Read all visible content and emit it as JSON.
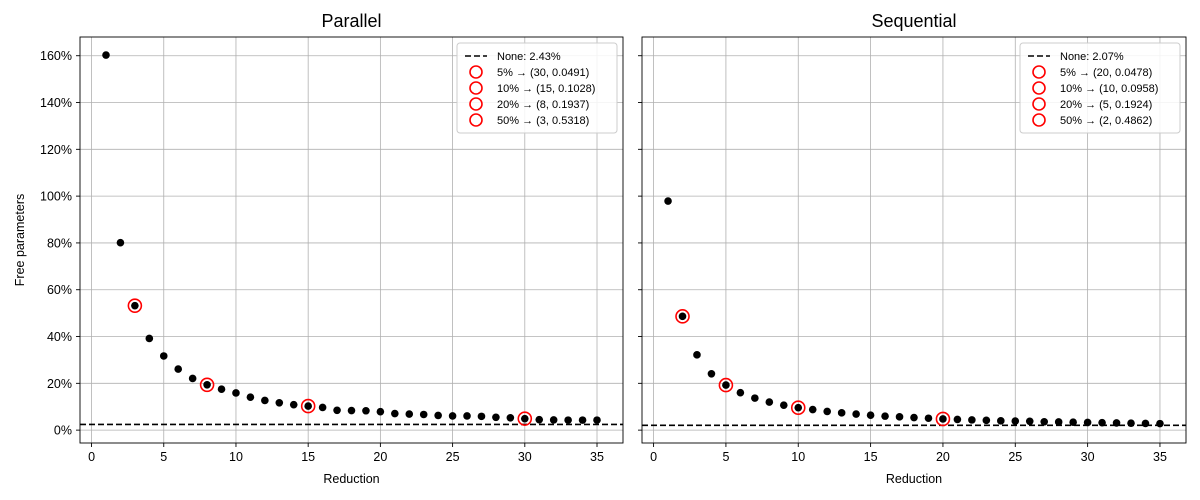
{
  "chart_data": [
    {
      "type": "scatter",
      "title": "Parallel",
      "xlabel": "Reduction",
      "ylabel": "Free parameters",
      "xlim": [
        -0.8,
        36.8
      ],
      "ylim": [
        -0.055,
        1.68
      ],
      "xticks": [
        0,
        5,
        10,
        15,
        20,
        25,
        30,
        35
      ],
      "xtick_labels": [
        "0",
        "5",
        "10",
        "15",
        "20",
        "25",
        "30",
        "35"
      ],
      "yticks": [
        0,
        0.2,
        0.4,
        0.6,
        0.8,
        1.0,
        1.2,
        1.4,
        1.6
      ],
      "ytick_labels": [
        "0%",
        "20%",
        "40%",
        "60%",
        "80%",
        "100%",
        "120%",
        "140%",
        "160%"
      ],
      "grid": true,
      "legend_position": "top-right",
      "points": {
        "x": [
          1,
          2,
          3,
          4,
          5,
          6,
          7,
          8,
          9,
          10,
          11,
          12,
          13,
          14,
          15,
          16,
          17,
          18,
          19,
          20,
          21,
          22,
          23,
          24,
          25,
          26,
          27,
          28,
          29,
          30,
          31,
          32,
          33,
          34,
          35
        ],
        "y": [
          1.603,
          0.801,
          0.5318,
          0.3918,
          0.3168,
          0.2608,
          0.2208,
          0.1937,
          0.1748,
          0.1588,
          0.1408,
          0.1268,
          0.1168,
          0.1088,
          0.1028,
          0.0968,
          0.0848,
          0.0838,
          0.0828,
          0.0788,
          0.0708,
          0.0688,
          0.0668,
          0.0628,
          0.0608,
          0.0608,
          0.0588,
          0.0548,
          0.0528,
          0.0491,
          0.0448,
          0.0438,
          0.0428,
          0.0428,
          0.0428
        ]
      },
      "baseline": {
        "label": "None: 2.43%",
        "value": 0.0243
      },
      "highlights": [
        {
          "label": "5% → (30, 0.0491)",
          "x": 30,
          "y": 0.0491
        },
        {
          "label": "10% → (15, 0.1028)",
          "x": 15,
          "y": 0.1028
        },
        {
          "label": "20% → (8, 0.1937)",
          "x": 8,
          "y": 0.1937
        },
        {
          "label": "50% → (3, 0.5318)",
          "x": 3,
          "y": 0.5318
        }
      ]
    },
    {
      "type": "scatter",
      "title": "Sequential",
      "xlabel": "Reduction",
      "ylabel": "",
      "xlim": [
        -0.8,
        36.8
      ],
      "ylim": [
        -0.055,
        1.68
      ],
      "xticks": [
        0,
        5,
        10,
        15,
        20,
        25,
        30,
        35
      ],
      "xtick_labels": [
        "0",
        "5",
        "10",
        "15",
        "20",
        "25",
        "30",
        "35"
      ],
      "yticks": [
        0,
        0.2,
        0.4,
        0.6,
        0.8,
        1.0,
        1.2,
        1.4,
        1.6
      ],
      "ytick_labels": [],
      "grid": true,
      "legend_position": "top-right",
      "points": {
        "x": [
          1,
          2,
          3,
          4,
          5,
          6,
          7,
          8,
          9,
          10,
          11,
          12,
          13,
          14,
          15,
          16,
          17,
          18,
          19,
          20,
          21,
          22,
          23,
          24,
          25,
          26,
          27,
          28,
          29,
          30,
          31,
          32,
          33,
          34,
          35
        ],
        "y": [
          0.979,
          0.4862,
          0.3218,
          0.2408,
          0.1924,
          0.1598,
          0.1368,
          0.1198,
          0.1068,
          0.0958,
          0.0878,
          0.0798,
          0.0738,
          0.0688,
          0.0638,
          0.0598,
          0.0568,
          0.0538,
          0.0508,
          0.0478,
          0.0458,
          0.0438,
          0.0418,
          0.0398,
          0.0388,
          0.0378,
          0.0358,
          0.0348,
          0.0338,
          0.0328,
          0.0318,
          0.0308,
          0.0298,
          0.0288,
          0.0278
        ]
      },
      "baseline": {
        "label": "None: 2.07%",
        "value": 0.0207
      },
      "highlights": [
        {
          "label": "5% → (20, 0.0478)",
          "x": 20,
          "y": 0.0478
        },
        {
          "label": "10% → (10, 0.0958)",
          "x": 10,
          "y": 0.0958
        },
        {
          "label": "20% → (5, 0.1924)",
          "x": 5,
          "y": 0.1924
        },
        {
          "label": "50% → (2, 0.4862)",
          "x": 2,
          "y": 0.4862
        }
      ]
    }
  ],
  "colors": {
    "points": "#000000",
    "highlight": "#ff0000",
    "grid": "#b0b0b0",
    "baseline": "#000000"
  }
}
